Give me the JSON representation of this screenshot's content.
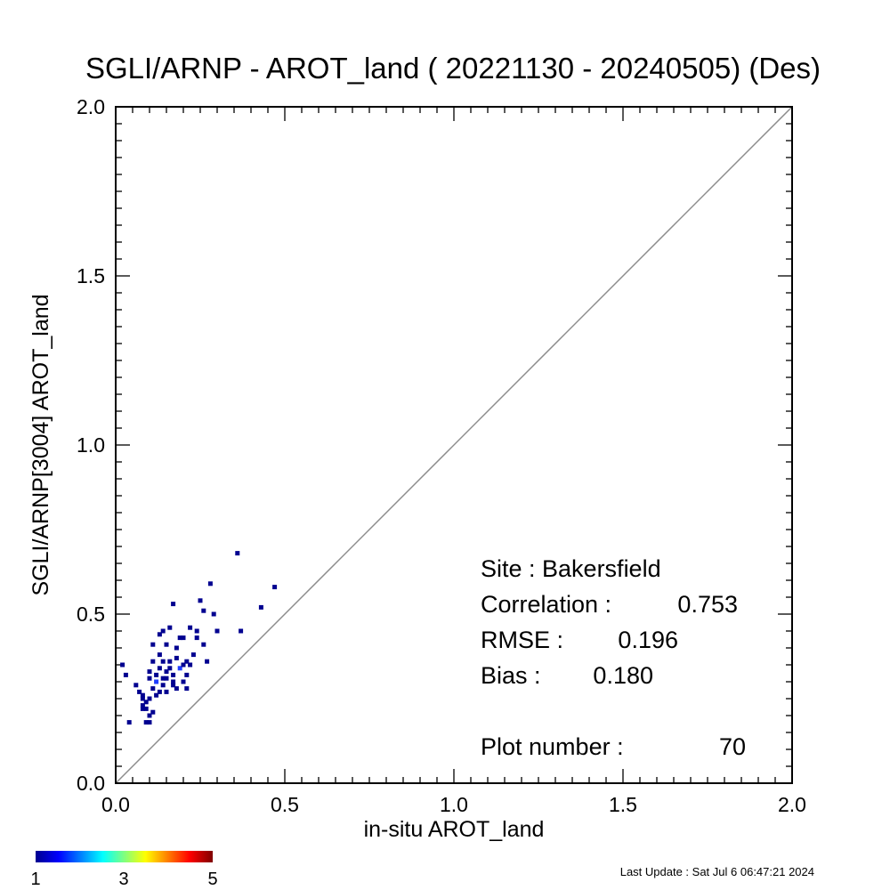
{
  "chart_data": {
    "type": "scatter",
    "title": "SGLI/ARNP - AROT_land ( 20221130 - 20240505) (Des)",
    "xlabel": "in-situ AROT_land",
    "ylabel": "SGLI/ARNP[3004]    AROT_land",
    "xlim": [
      0.0,
      2.0
    ],
    "ylim": [
      0.0,
      2.0
    ],
    "x_ticks": [
      "0.0",
      "0.5",
      "1.0",
      "1.5",
      "2.0"
    ],
    "y_ticks": [
      "0.0",
      "0.5",
      "1.0",
      "1.5",
      "2.0"
    ],
    "reference_line": "1:1",
    "grid": false,
    "colorbar": {
      "min_label": "1",
      "mid_label": "3",
      "max_label": "5"
    },
    "stats": {
      "site": "Site : Bakersfield",
      "correlation_label": "Correlation :",
      "correlation": "0.753",
      "rmse_label": "RMSE :",
      "rmse": "0.196",
      "bias_label": "Bias :",
      "bias": "0.180",
      "plot_number_label": "Plot number :",
      "plot_number": "70"
    },
    "points": [
      [
        0.02,
        0.35
      ],
      [
        0.03,
        0.32
      ],
      [
        0.04,
        0.18
      ],
      [
        0.06,
        0.29
      ],
      [
        0.07,
        0.27
      ],
      [
        0.08,
        0.23
      ],
      [
        0.08,
        0.26
      ],
      [
        0.08,
        0.22
      ],
      [
        0.09,
        0.18
      ],
      [
        0.09,
        0.24
      ],
      [
        0.1,
        0.2
      ],
      [
        0.1,
        0.18
      ],
      [
        0.1,
        0.25
      ],
      [
        0.1,
        0.33
      ],
      [
        0.11,
        0.28
      ],
      [
        0.11,
        0.21
      ],
      [
        0.11,
        0.41
      ],
      [
        0.12,
        0.3
      ],
      [
        0.12,
        0.26
      ],
      [
        0.13,
        0.34
      ],
      [
        0.13,
        0.38
      ],
      [
        0.13,
        0.44
      ],
      [
        0.14,
        0.31
      ],
      [
        0.14,
        0.36
      ],
      [
        0.14,
        0.45
      ],
      [
        0.15,
        0.31
      ],
      [
        0.15,
        0.27
      ],
      [
        0.15,
        0.33
      ],
      [
        0.16,
        0.46
      ],
      [
        0.16,
        0.36
      ],
      [
        0.17,
        0.3
      ],
      [
        0.17,
        0.53
      ],
      [
        0.17,
        0.29
      ],
      [
        0.18,
        0.28
      ],
      [
        0.18,
        0.37
      ],
      [
        0.18,
        0.4
      ],
      [
        0.19,
        0.43
      ],
      [
        0.2,
        0.3
      ],
      [
        0.2,
        0.43
      ],
      [
        0.21,
        0.32
      ],
      [
        0.21,
        0.36
      ],
      [
        0.21,
        0.28
      ],
      [
        0.22,
        0.35
      ],
      [
        0.22,
        0.46
      ],
      [
        0.23,
        0.38
      ],
      [
        0.24,
        0.43
      ],
      [
        0.25,
        0.54
      ],
      [
        0.26,
        0.41
      ],
      [
        0.26,
        0.51
      ],
      [
        0.27,
        0.36
      ],
      [
        0.28,
        0.59
      ],
      [
        0.29,
        0.5
      ],
      [
        0.3,
        0.45
      ],
      [
        0.36,
        0.68
      ],
      [
        0.37,
        0.45
      ],
      [
        0.43,
        0.52
      ],
      [
        0.47,
        0.58
      ],
      [
        0.09,
        0.22
      ],
      [
        0.12,
        0.32
      ],
      [
        0.13,
        0.27
      ],
      [
        0.15,
        0.41
      ],
      [
        0.16,
        0.34
      ],
      [
        0.19,
        0.34
      ],
      [
        0.1,
        0.31
      ],
      [
        0.14,
        0.29
      ],
      [
        0.11,
        0.36
      ],
      [
        0.17,
        0.32
      ],
      [
        0.2,
        0.35
      ],
      [
        0.08,
        0.25
      ],
      [
        0.24,
        0.45
      ]
    ]
  },
  "footer": {
    "last_update": "Last Update : Sat Jul  6 06:47:21 2024"
  },
  "colors": {
    "point": "#000090",
    "point_accent": "#1e3cff",
    "reference_line": "#8c8c8c",
    "colorbar": [
      "#00008f",
      "#0000ff",
      "#00ffff",
      "#ffff00",
      "#ff0000",
      "#800000"
    ]
  }
}
